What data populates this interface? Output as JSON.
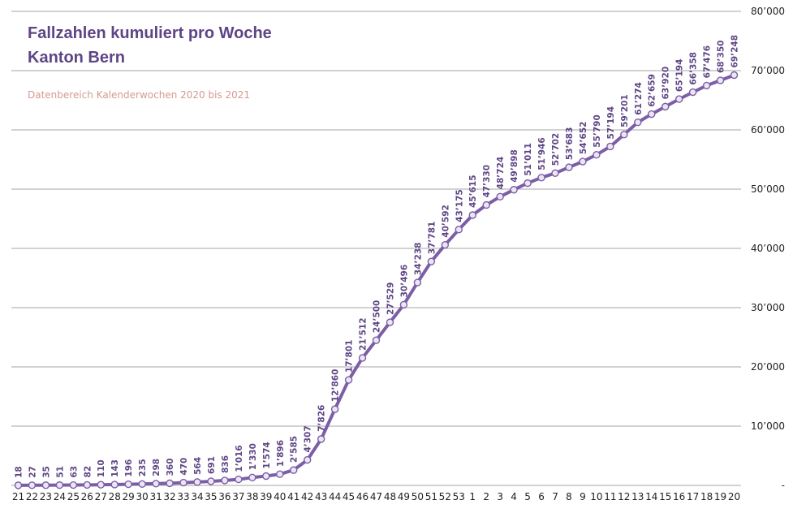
{
  "chart_data": {
    "type": "line",
    "title": "Fallzahlen kumuliert pro Woche",
    "subtitle": "Kanton Bern",
    "note": "Datenbereich Kalenderwochen 2020 bis 2021",
    "categories": [
      "21",
      "22",
      "23",
      "24",
      "25",
      "26",
      "27",
      "28",
      "29",
      "30",
      "31",
      "32",
      "33",
      "34",
      "35",
      "36",
      "37",
      "38",
      "39",
      "40",
      "41",
      "42",
      "43",
      "44",
      "45",
      "46",
      "47",
      "48",
      "49",
      "50",
      "51",
      "52",
      "53",
      "1",
      "2",
      "3",
      "4",
      "5",
      "6",
      "7",
      "8",
      "9",
      "10",
      "11",
      "12",
      "13",
      "14",
      "15",
      "16",
      "17",
      "18",
      "19",
      "20"
    ],
    "values": [
      18,
      27,
      35,
      51,
      63,
      82,
      110,
      143,
      196,
      235,
      298,
      360,
      470,
      564,
      691,
      836,
      1016,
      1330,
      1574,
      1896,
      2585,
      4307,
      7826,
      12860,
      17801,
      21512,
      24500,
      27529,
      30496,
      34238,
      37781,
      40592,
      43175,
      45615,
      47330,
      48724,
      49898,
      51011,
      51946,
      52702,
      53683,
      54652,
      55790,
      57194,
      59201,
      61274,
      62659,
      63920,
      65194,
      66358,
      67476,
      68350,
      69248
    ],
    "data_labels": [
      "18",
      "27",
      "35",
      "51",
      "63",
      "82",
      "110",
      "143",
      "196",
      "235",
      "298",
      "360",
      "470",
      "564",
      "691",
      "836",
      "1’016",
      "1’330",
      "1’574",
      "1’896",
      "2’585",
      "4’307",
      "7’826",
      "12’860",
      "17’801",
      "21’512",
      "24’500",
      "27’529",
      "30’496",
      "34’238",
      "37’781",
      "40’592",
      "43’175",
      "45’615",
      "47’330",
      "48’724",
      "49’898",
      "51’011",
      "51’946",
      "52’702",
      "53’683",
      "54’652",
      "55’790",
      "57’194",
      "59’201",
      "61’274",
      "62’659",
      "63’920",
      "65’194",
      "66’358",
      "67’476",
      "68’350",
      "69’248"
    ],
    "y_ticks": [
      0,
      10000,
      20000,
      30000,
      40000,
      50000,
      60000,
      70000,
      80000
    ],
    "y_tick_labels": [
      "-",
      "10’000",
      "20’000",
      "30’000",
      "40’000",
      "50’000",
      "60’000",
      "70’000",
      "80’000"
    ],
    "ylim": [
      0,
      80000
    ],
    "grid": true,
    "y_axis_side": "right",
    "colors": {
      "line": "#7b5ea7",
      "marker_fill": "#ece6f4",
      "label": "#5e4585",
      "grid": "#a6a6a6",
      "title": "#5e4585",
      "note": "#d49a92"
    }
  }
}
